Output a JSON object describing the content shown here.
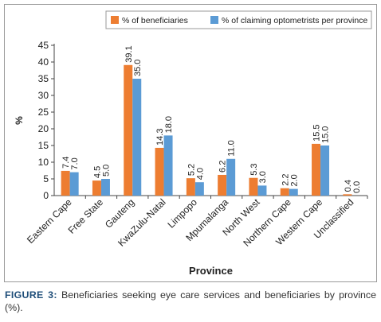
{
  "caption": {
    "label": "FIGURE 3:",
    "text": " Beneficiaries seeking eye care services and beneficiaries by province (%)."
  },
  "chart_data": {
    "type": "bar",
    "xlabel": "Province",
    "ylabel": "%",
    "ylim": [
      0,
      45
    ],
    "yticks": [
      0,
      5,
      10,
      15,
      20,
      25,
      30,
      35,
      40,
      45
    ],
    "grid": false,
    "legend_position": "top-right",
    "categories": [
      "Eastern Cape",
      "Free State",
      "Gauteng",
      "KwaZulu-Natal",
      "Limpopo",
      "Mpumalanga",
      "North West",
      "Northern Cape",
      "Western Cape",
      "Unclassified"
    ],
    "series": [
      {
        "name": "% of beneficiaries",
        "color": "#ed7d31",
        "values": [
          7.4,
          4.5,
          39.1,
          14.3,
          5.2,
          6.2,
          5.3,
          2.2,
          15.5,
          0.4
        ]
      },
      {
        "name": "% of claiming optometrists per province",
        "color": "#5b9bd5",
        "values": [
          7.0,
          5.0,
          35.0,
          18.0,
          4.0,
          11.0,
          3.0,
          2.0,
          15.0,
          0.0
        ]
      }
    ]
  }
}
